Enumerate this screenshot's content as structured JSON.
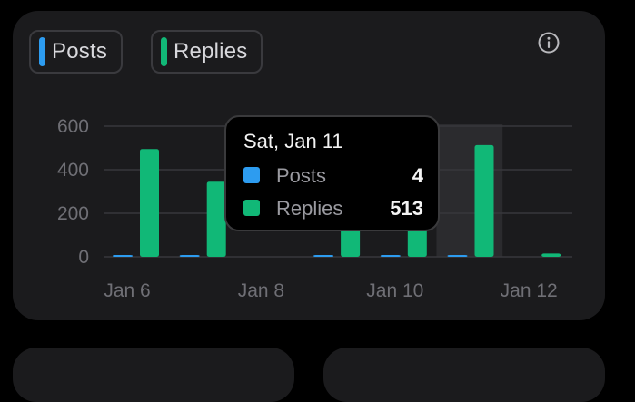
{
  "legend": [
    {
      "label": "Posts",
      "color": "#2d9cf0"
    },
    {
      "label": "Replies",
      "color": "#11b877"
    }
  ],
  "info_icon": "info-circle-icon",
  "chart_data": {
    "type": "bar",
    "categories": [
      "Jan 6",
      "Jan 7",
      "Jan 8",
      "Jan 9",
      "Jan 10",
      "Jan 11",
      "Jan 12"
    ],
    "x_tick_labels": [
      "Jan 6",
      "Jan 8",
      "Jan 10",
      "Jan 12"
    ],
    "series": [
      {
        "name": "Posts",
        "color": "#2d9cf0",
        "values": [
          4,
          4,
          0,
          4,
          4,
          4,
          0
        ]
      },
      {
        "name": "Replies",
        "color": "#11b877",
        "values": [
          495,
          345,
          0,
          200,
          200,
          513,
          15
        ]
      }
    ],
    "ylim": [
      0,
      600
    ],
    "y_ticks": [
      0,
      200,
      400,
      600
    ],
    "grid": true,
    "highlighted_category": "Jan 11"
  },
  "tooltip": {
    "date": "Sat, Jan 11",
    "rows": [
      {
        "label": "Posts",
        "value": "4",
        "color": "#2d9cf0"
      },
      {
        "label": "Replies",
        "value": "513",
        "color": "#11b877"
      }
    ]
  }
}
